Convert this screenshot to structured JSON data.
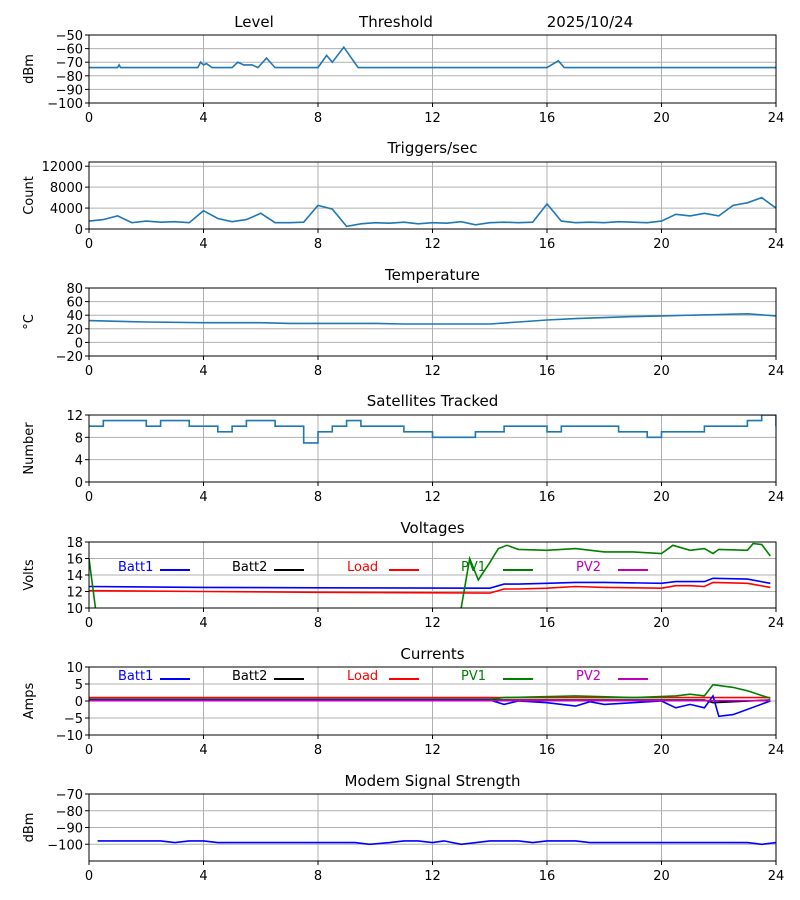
{
  "header": {
    "level_label": "Level",
    "threshold_label": "Threshold",
    "date": "2025/10/24"
  },
  "colors": {
    "series": "#1f77b4",
    "batt1": "#0000ff",
    "batt2": "#000000",
    "load": "#ff0000",
    "pv1": "#008000",
    "pv2": "#bf00bf",
    "grid": "#b0b0b0"
  },
  "chart_data": [
    {
      "type": "line",
      "title": "",
      "ylabel": "dBm",
      "xlim": [
        0,
        24
      ],
      "ylim": [
        -100,
        -50
      ],
      "xticks": [
        "0",
        "4",
        "8",
        "12",
        "16",
        "20",
        "24"
      ],
      "yticks": [
        "-100",
        "-90",
        "-80",
        "-70",
        "-60",
        "-50"
      ],
      "series": [
        {
          "name": "Level",
          "color": "#1f77b4",
          "points": [
            [
              0,
              -74
            ],
            [
              1,
              -74
            ],
            [
              1.05,
              -72
            ],
            [
              1.1,
              -74
            ],
            [
              3.8,
              -74
            ],
            [
              3.9,
              -70
            ],
            [
              4.0,
              -72
            ],
            [
              4.1,
              -71
            ],
            [
              4.3,
              -74
            ],
            [
              5.0,
              -74
            ],
            [
              5.2,
              -70
            ],
            [
              5.4,
              -72
            ],
            [
              5.7,
              -72
            ],
            [
              5.9,
              -74
            ],
            [
              6.2,
              -67
            ],
            [
              6.5,
              -74
            ],
            [
              8.0,
              -74
            ],
            [
              8.3,
              -65
            ],
            [
              8.5,
              -70
            ],
            [
              8.9,
              -59
            ],
            [
              9.4,
              -74
            ],
            [
              16.0,
              -74
            ],
            [
              16.4,
              -69
            ],
            [
              16.6,
              -74
            ],
            [
              24,
              -74
            ]
          ]
        }
      ]
    },
    {
      "type": "line",
      "title": "Triggers/sec",
      "ylabel": "Count",
      "xlim": [
        0,
        24
      ],
      "ylim": [
        0,
        12800
      ],
      "xticks": [
        "0",
        "4",
        "8",
        "12",
        "16",
        "20",
        "24"
      ],
      "yticks": [
        "0",
        "4000",
        "8000",
        "12000"
      ],
      "series": [
        {
          "name": "Triggers",
          "color": "#1f77b4",
          "step": 0.5,
          "values": [
            1500,
            1800,
            2500,
            1200,
            1500,
            1300,
            1400,
            1200,
            3500,
            2000,
            1400,
            1800,
            3000,
            1200,
            1200,
            1300,
            4500,
            3800,
            500,
            1000,
            1200,
            1100,
            1300,
            1000,
            1200,
            1100,
            1400,
            800,
            1200,
            1300,
            1200,
            1300,
            4800,
            1500,
            1200,
            1300,
            1200,
            1400,
            1300,
            1200,
            1500,
            2800,
            2500,
            3000,
            2500,
            4500,
            5000,
            6000,
            4000
          ]
        }
      ]
    },
    {
      "type": "line",
      "title": "Temperature",
      "ylabel": "°C",
      "xlim": [
        0,
        24
      ],
      "ylim": [
        -20,
        80
      ],
      "xticks": [
        "0",
        "4",
        "8",
        "12",
        "16",
        "20",
        "24"
      ],
      "yticks": [
        "-20",
        "0",
        "20",
        "40",
        "60",
        "80"
      ],
      "series": [
        {
          "name": "Temperature",
          "color": "#1f77b4",
          "points": [
            [
              0,
              32
            ],
            [
              1,
              31
            ],
            [
              2,
              30
            ],
            [
              4,
              29
            ],
            [
              6,
              29
            ],
            [
              7,
              28
            ],
            [
              10,
              28
            ],
            [
              11,
              27
            ],
            [
              14,
              27
            ],
            [
              15,
              30
            ],
            [
              16,
              33
            ],
            [
              17,
              35
            ],
            [
              19,
              38
            ],
            [
              20,
              39
            ],
            [
              22,
              41
            ],
            [
              23,
              42
            ],
            [
              24,
              39
            ]
          ]
        }
      ]
    },
    {
      "type": "line",
      "title": "Satellites Tracked",
      "ylabel": "Number",
      "xlim": [
        0,
        24
      ],
      "ylim": [
        0,
        12
      ],
      "xticks": [
        "0",
        "4",
        "8",
        "12",
        "16",
        "20",
        "24"
      ],
      "yticks": [
        "0",
        "4",
        "8",
        "12"
      ],
      "series": [
        {
          "name": "Satellites",
          "color": "#1f77b4",
          "step": 0.5,
          "stepped": true,
          "values": [
            10,
            11,
            11,
            11,
            10,
            11,
            11,
            10,
            10,
            9,
            10,
            11,
            11,
            10,
            10,
            7,
            9,
            10,
            11,
            10,
            10,
            10,
            9,
            9,
            8,
            8,
            8,
            9,
            9,
            10,
            10,
            10,
            9,
            10,
            10,
            10,
            10,
            9,
            9,
            8,
            9,
            9,
            9,
            10,
            10,
            10,
            11,
            12,
            10
          ]
        }
      ]
    },
    {
      "type": "line",
      "title": "Voltages",
      "ylabel": "Volts",
      "xlim": [
        0,
        24
      ],
      "ylim": [
        10,
        18
      ],
      "xticks": [
        "0",
        "4",
        "8",
        "12",
        "16",
        "20",
        "24"
      ],
      "yticks": [
        "10",
        "12",
        "14",
        "16",
        "18"
      ],
      "legend": [
        "Batt1",
        "Batt2",
        "Load",
        "PV1",
        "PV2"
      ],
      "series": [
        {
          "name": "Batt1",
          "color": "#0000ff",
          "points": [
            [
              0,
              12.6
            ],
            [
              4,
              12.5
            ],
            [
              8,
              12.45
            ],
            [
              14,
              12.4
            ],
            [
              14.5,
              12.9
            ],
            [
              15,
              12.9
            ],
            [
              16,
              13.0
            ],
            [
              17,
              13.1
            ],
            [
              18,
              13.1
            ],
            [
              20,
              13.0
            ],
            [
              20.5,
              13.2
            ],
            [
              21,
              13.2
            ],
            [
              21.5,
              13.2
            ],
            [
              21.8,
              13.6
            ],
            [
              23,
              13.5
            ],
            [
              23.8,
              13.0
            ]
          ]
        },
        {
          "name": "Batt2",
          "color": "#000000",
          "points": []
        },
        {
          "name": "Load",
          "color": "#ff0000",
          "points": [
            [
              0,
              12.1
            ],
            [
              4,
              12.0
            ],
            [
              8,
              11.9
            ],
            [
              14,
              11.8
            ],
            [
              14.5,
              12.3
            ],
            [
              15,
              12.3
            ],
            [
              16,
              12.4
            ],
            [
              17,
              12.6
            ],
            [
              18,
              12.5
            ],
            [
              20,
              12.4
            ],
            [
              20.5,
              12.7
            ],
            [
              21,
              12.7
            ],
            [
              21.5,
              12.6
            ],
            [
              21.8,
              13.1
            ],
            [
              23,
              13.0
            ],
            [
              23.8,
              12.5
            ]
          ]
        },
        {
          "name": "PV1",
          "color": "#008000",
          "points": [
            [
              0,
              16
            ],
            [
              0.3,
              8
            ],
            [
              12.9,
              8
            ],
            [
              13.3,
              16
            ],
            [
              13.6,
              13.4
            ],
            [
              14,
              15.5
            ],
            [
              14.3,
              17.2
            ],
            [
              14.6,
              17.6
            ],
            [
              15,
              17.1
            ],
            [
              16,
              17
            ],
            [
              17,
              17.2
            ],
            [
              18,
              16.8
            ],
            [
              19,
              16.8
            ],
            [
              20,
              16.6
            ],
            [
              20.4,
              17.6
            ],
            [
              21,
              17
            ],
            [
              21.5,
              17.2
            ],
            [
              21.8,
              16.6
            ],
            [
              22,
              17.1
            ],
            [
              23,
              17
            ],
            [
              23.2,
              17.8
            ],
            [
              23.5,
              17.7
            ],
            [
              23.8,
              16.3
            ]
          ]
        },
        {
          "name": "PV2",
          "color": "#bf00bf",
          "points": []
        }
      ]
    },
    {
      "type": "line",
      "title": "Currents",
      "ylabel": "Amps",
      "xlim": [
        0,
        24
      ],
      "ylim": [
        -10,
        10
      ],
      "xticks": [
        "0",
        "4",
        "8",
        "12",
        "16",
        "20",
        "24"
      ],
      "yticks": [
        "-10",
        "-5",
        "0",
        "5",
        "10"
      ],
      "legend": [
        "Batt1",
        "Batt2",
        "Load",
        "PV1",
        "PV2"
      ],
      "series": [
        {
          "name": "Load",
          "color": "#ff0000",
          "points": [
            [
              0,
              1
            ],
            [
              23.8,
              1
            ]
          ]
        },
        {
          "name": "Batt2",
          "color": "#000000",
          "points": [
            [
              0,
              0.3
            ],
            [
              21.5,
              0.3
            ],
            [
              21.8,
              -0.5
            ],
            [
              23.8,
              0.3
            ]
          ]
        },
        {
          "name": "PV1",
          "color": "#008000",
          "points": [
            [
              0,
              0.5
            ],
            [
              14,
              0.5
            ],
            [
              14.5,
              1
            ],
            [
              17,
              1.5
            ],
            [
              19,
              1
            ],
            [
              20.5,
              1.5
            ],
            [
              21,
              2
            ],
            [
              21.5,
              1.5
            ],
            [
              21.8,
              4.8
            ],
            [
              22.5,
              4
            ],
            [
              23,
              3
            ],
            [
              23.8,
              0.8
            ]
          ]
        },
        {
          "name": "Batt1",
          "color": "#0000ff",
          "points": [
            [
              0,
              0.3
            ],
            [
              14,
              0.3
            ],
            [
              14.5,
              -1
            ],
            [
              15,
              0
            ],
            [
              16,
              -0.5
            ],
            [
              17,
              -1.5
            ],
            [
              17.5,
              -0.2
            ],
            [
              18,
              -1
            ],
            [
              19,
              -0.5
            ],
            [
              20,
              0
            ],
            [
              20.5,
              -2
            ],
            [
              21,
              -1
            ],
            [
              21.5,
              -2
            ],
            [
              21.8,
              1.5
            ],
            [
              22,
              -4.5
            ],
            [
              22.5,
              -4
            ],
            [
              23.8,
              0
            ]
          ]
        },
        {
          "name": "PV2",
          "color": "#bf00bf",
          "points": [
            [
              0,
              0.1
            ],
            [
              23.8,
              0.1
            ]
          ]
        }
      ]
    },
    {
      "type": "line",
      "title": "Modem Signal Strength",
      "ylabel": "dBm",
      "xlim": [
        0,
        24
      ],
      "ylim": [
        -110,
        -70
      ],
      "xticks": [
        "0",
        "4",
        "8",
        "12",
        "16",
        "20",
        "24"
      ],
      "yticks": [
        "-100",
        "-90",
        "-80",
        "-70"
      ],
      "ytick_values": [
        -100,
        -90,
        -80,
        -70
      ],
      "series": [
        {
          "name": "Modem",
          "color": "#0000ff",
          "points": [
            [
              0.3,
              -98
            ],
            [
              2.5,
              -98
            ],
            [
              3,
              -99
            ],
            [
              3.5,
              -98
            ],
            [
              4,
              -98
            ],
            [
              4.5,
              -99
            ],
            [
              9.3,
              -99
            ],
            [
              9.8,
              -100
            ],
            [
              10.5,
              -99
            ],
            [
              11,
              -98
            ],
            [
              11.5,
              -98
            ],
            [
              12,
              -99
            ],
            [
              12.4,
              -98
            ],
            [
              13,
              -100
            ],
            [
              14,
              -98
            ],
            [
              15,
              -98
            ],
            [
              15.5,
              -99
            ],
            [
              16,
              -98
            ],
            [
              17,
              -98
            ],
            [
              17.5,
              -99
            ],
            [
              23,
              -99
            ],
            [
              23.5,
              -100
            ],
            [
              24,
              -99
            ]
          ]
        }
      ]
    }
  ]
}
